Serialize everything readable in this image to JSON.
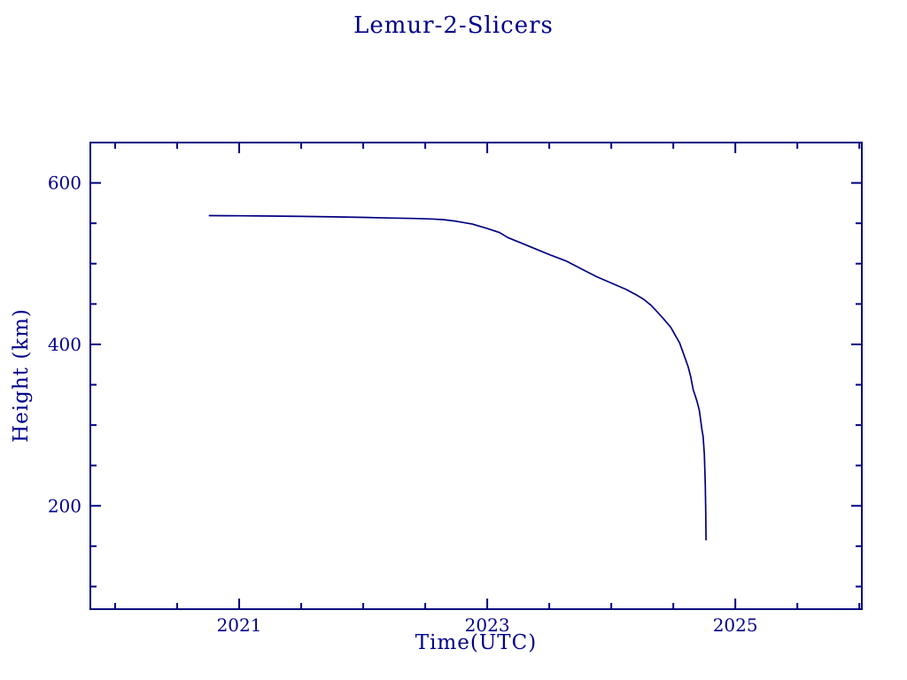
{
  "page": {
    "background": "#ffffff",
    "accent": "#000080",
    "text_color": "#00008b"
  },
  "chart_data": {
    "type": "line",
    "title": "Lemur-2-Slicers",
    "xlabel": "Time(UTC)",
    "ylabel": "Height (km)",
    "xlim": [
      2019.8,
      2026.02
    ],
    "ylim": [
      72,
      650
    ],
    "x_major_ticks": [
      2021,
      2023,
      2025
    ],
    "x_tick_labels": [
      "2021",
      "2023",
      "2025"
    ],
    "x_minor_ticks": [
      2020,
      2020.5,
      2021.5,
      2022,
      2022.5,
      2023.5,
      2024,
      2024.5,
      2025.5,
      2026
    ],
    "y_major_ticks": [
      200,
      400,
      600
    ],
    "y_tick_labels": [
      "200",
      "400",
      "600"
    ],
    "y_minor_ticks": [
      100,
      150,
      250,
      300,
      350,
      450,
      500,
      550
    ],
    "grid": false,
    "legend_position": "none",
    "line_color": "#000080",
    "frame_color": "#000080",
    "series": [
      {
        "name": "Lemur-2-Slicers height",
        "points": [
          [
            2020.76,
            559.5
          ],
          [
            2021.0,
            559.3
          ],
          [
            2021.25,
            559.0
          ],
          [
            2021.5,
            558.5
          ],
          [
            2021.75,
            558.0
          ],
          [
            2022.0,
            557.3
          ],
          [
            2022.2,
            556.6
          ],
          [
            2022.4,
            556.0
          ],
          [
            2022.55,
            555.3
          ],
          [
            2022.65,
            554.5
          ],
          [
            2022.75,
            552.5
          ],
          [
            2022.88,
            549.0
          ],
          [
            2023.0,
            543.5
          ],
          [
            2023.1,
            538.5
          ],
          [
            2023.17,
            532.0
          ],
          [
            2023.3,
            524.0
          ],
          [
            2023.41,
            517.0
          ],
          [
            2023.52,
            510.0
          ],
          [
            2023.64,
            503.0
          ],
          [
            2023.76,
            493.5
          ],
          [
            2023.88,
            484.0
          ],
          [
            2024.0,
            476.0
          ],
          [
            2024.12,
            468.0
          ],
          [
            2024.2,
            461.5
          ],
          [
            2024.26,
            456.0
          ],
          [
            2024.32,
            448.5
          ],
          [
            2024.36,
            442.0
          ],
          [
            2024.42,
            432.0
          ],
          [
            2024.48,
            421.0
          ],
          [
            2024.52,
            410.0
          ],
          [
            2024.55,
            402.0
          ],
          [
            2024.59,
            385.0
          ],
          [
            2024.62,
            372.0
          ],
          [
            2024.64,
            360.0
          ],
          [
            2024.66,
            344.0
          ],
          [
            2024.69,
            330.0
          ],
          [
            2024.71,
            318.0
          ],
          [
            2024.73,
            295.0
          ],
          [
            2024.74,
            286.0
          ],
          [
            2024.75,
            264.0
          ],
          [
            2024.755,
            240.0
          ],
          [
            2024.758,
            224.0
          ],
          [
            2024.762,
            190.0
          ],
          [
            2024.764,
            158.0
          ]
        ]
      }
    ]
  }
}
